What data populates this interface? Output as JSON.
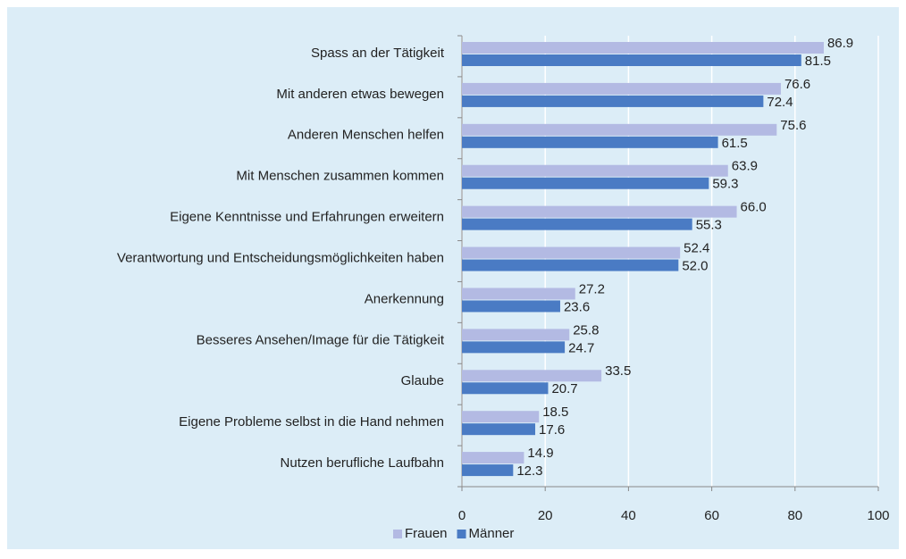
{
  "chart_data": {
    "type": "barh",
    "categories": [
      "Spass an der Tätigkeit",
      "Mit anderen etwas bewegen",
      "Anderen Menschen helfen",
      "Mit Menschen zusammen kommen",
      "Eigene Kenntnisse und Erfahrungen erweitern",
      "Verantwortung und Entscheidungsmöglichkeiten haben",
      "Anerkennung",
      "Besseres Ansehen/Image für die Tätigkeit",
      "Glaube",
      "Eigene Probleme selbst in die Hand nehmen",
      "Nutzen berufliche Laufbahn"
    ],
    "series": [
      {
        "name": "Frauen",
        "color": "#b3bae3",
        "values": [
          86.9,
          76.6,
          75.6,
          63.9,
          66,
          52.4,
          27.2,
          25.8,
          33.5,
          18.5,
          14.9
        ],
        "value_labels": [
          "86.9",
          "76.6",
          "75.6",
          "63.9",
          "66.0",
          "52.4",
          "27.2",
          "25.8",
          "33.5",
          "18.5",
          "14.9"
        ]
      },
      {
        "name": "Männer",
        "color": "#4a7bc4",
        "values": [
          81.5,
          72.4,
          61.5,
          59.3,
          55.3,
          52,
          23.6,
          24.7,
          20.7,
          17.6,
          12.3
        ],
        "value_labels": [
          "81.5",
          "72.4",
          "61.5",
          "59.3",
          "55.3",
          "52.0",
          "23.6",
          "24.7",
          "20.7",
          "17.6",
          "12.3"
        ]
      }
    ],
    "xlim": [
      0,
      100
    ],
    "xticks": [
      0,
      20,
      40,
      60,
      80,
      100
    ],
    "grid": true,
    "legend": "bottom"
  }
}
